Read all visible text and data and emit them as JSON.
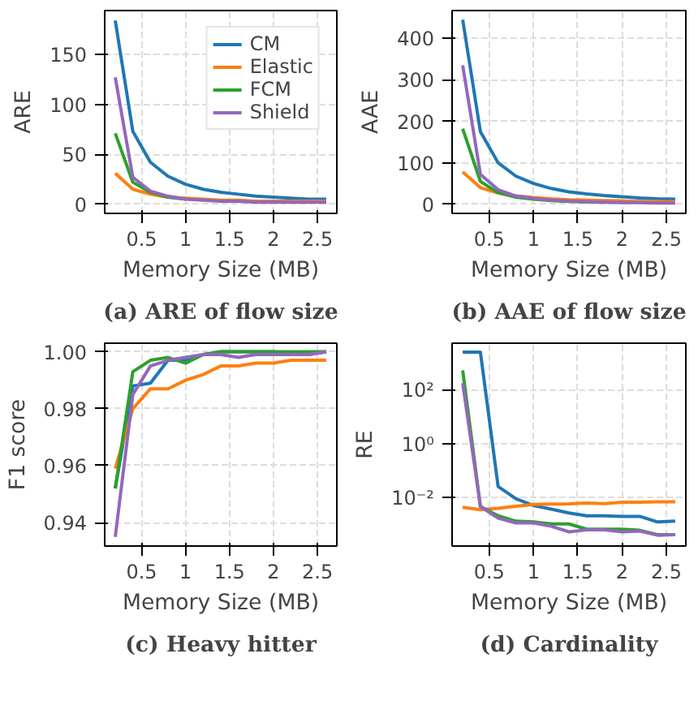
{
  "chart_data": [
    {
      "type": "line",
      "title": "(a) ARE of flow size",
      "xlabel": "Memory Size (MB)",
      "ylabel": "ARE",
      "x": [
        0.2,
        0.4,
        0.6,
        0.8,
        1.0,
        1.2,
        1.4,
        1.6,
        1.8,
        2.0,
        2.2,
        2.4,
        2.6
      ],
      "xlim": [
        0.08,
        2.72
      ],
      "xticks": [
        0.5,
        1.0,
        1.5,
        2.0,
        2.5
      ],
      "ylim": [
        -9.2,
        194
      ],
      "yticks": [
        0,
        50,
        100,
        150
      ],
      "grid": true,
      "legend": "top right",
      "series": [
        {
          "name": "CM",
          "color": "#1f77b4",
          "values": [
            184,
            73,
            42,
            28,
            20,
            15,
            12,
            10,
            8,
            7,
            6,
            5,
            5
          ]
        },
        {
          "name": "Elastic",
          "color": "#ff7f0e",
          "values": [
            31,
            15,
            10,
            7,
            6,
            5,
            4,
            4,
            3,
            3,
            3,
            3,
            3
          ]
        },
        {
          "name": "FCM",
          "color": "#2ca02c",
          "values": [
            71,
            22,
            12,
            7,
            5,
            null,
            null,
            null,
            null,
            null,
            null,
            null,
            null
          ]
        },
        {
          "name": "Shield",
          "color": "#9467bd",
          "values": [
            127,
            27,
            13,
            8,
            5,
            4,
            3,
            3,
            2,
            2,
            2,
            2,
            2
          ]
        }
      ]
    },
    {
      "type": "line",
      "title": "(b) AAE of flow size",
      "xlabel": "Memory Size (MB)",
      "ylabel": "AAE",
      "x": [
        0.2,
        0.4,
        0.6,
        0.8,
        1.0,
        1.2,
        1.4,
        1.6,
        1.8,
        2.0,
        2.2,
        2.4,
        2.6
      ],
      "xlim": [
        0.08,
        2.72
      ],
      "xticks": [
        0.5,
        1.0,
        1.5,
        2.0,
        2.5
      ],
      "ylim": [
        -22,
        467
      ],
      "yticks": [
        0,
        100,
        200,
        300,
        400
      ],
      "grid": true,
      "series": [
        {
          "color": "#1f77b4",
          "values": [
            445,
            175,
            100,
            68,
            50,
            38,
            30,
            25,
            21,
            18,
            15,
            13,
            12
          ]
        },
        {
          "color": "#ff7f0e",
          "values": [
            78,
            40,
            27,
            20,
            16,
            13,
            11,
            10,
            9,
            8,
            7,
            7,
            6
          ]
        },
        {
          "color": "#2ca02c",
          "values": [
            182,
            55,
            28,
            17,
            12,
            9,
            7,
            6,
            5,
            null,
            null,
            null,
            null
          ]
        },
        {
          "color": "#9467bd",
          "values": [
            335,
            72,
            35,
            20,
            14,
            10,
            8,
            6,
            5,
            4,
            4,
            3,
            3
          ]
        }
      ]
    },
    {
      "type": "line",
      "title": "(c) Heavy hitter",
      "xlabel": "Memory Size (MB)",
      "ylabel": "F1 score",
      "x": [
        0.2,
        0.4,
        0.6,
        0.8,
        1.0,
        1.2,
        1.4,
        1.6,
        1.8,
        2.0,
        2.2,
        2.4,
        2.6
      ],
      "xlim": [
        0.08,
        2.72
      ],
      "xticks": [
        0.5,
        1.0,
        1.5,
        2.0,
        2.5
      ],
      "ylim": [
        0.9318,
        1.003
      ],
      "yticks": [
        {
          "value": 0.94,
          "label": "0.94"
        },
        {
          "value": 0.96,
          "label": "0.96"
        },
        {
          "value": 0.98,
          "label": "0.98"
        },
        {
          "value": 1.0,
          "label": "1.00"
        }
      ],
      "grid": true,
      "series": [
        {
          "color": "#1f77b4",
          "values": [
            0.952,
            0.988,
            0.989,
            0.997,
            0.997,
            0.999,
            1.0,
            1.0,
            1.0,
            1.0,
            0.999,
            0.999,
            1.0
          ]
        },
        {
          "color": "#ff7f0e",
          "values": [
            0.959,
            0.98,
            0.987,
            0.987,
            0.99,
            0.992,
            0.995,
            0.995,
            0.996,
            0.996,
            0.997,
            0.997,
            0.997
          ]
        },
        {
          "color": "#2ca02c",
          "values": [
            0.952,
            0.993,
            0.997,
            0.998,
            0.996,
            0.999,
            1.0,
            1.0,
            1.0,
            1.0,
            1.0,
            1.0,
            1.0
          ]
        },
        {
          "color": "#9467bd",
          "values": [
            0.935,
            0.985,
            0.995,
            0.997,
            0.998,
            0.999,
            0.999,
            0.998,
            0.999,
            0.999,
            0.999,
            0.999,
            1.0
          ]
        }
      ]
    },
    {
      "type": "line",
      "title": "(d) Cardinality",
      "xlabel": "Memory Size (MB)",
      "ylabel": "RE",
      "x": [
        0.2,
        0.4,
        0.6,
        0.8,
        1.0,
        1.2,
        1.4,
        1.6,
        1.8,
        2.0,
        2.2,
        2.4,
        2.6
      ],
      "xlim": [
        0.08,
        2.72
      ],
      "xticks": [
        0.5,
        1.0,
        1.5,
        2.0,
        2.5
      ],
      "log": "y",
      "ylim": [
        0.000166,
        5750
      ],
      "yticks": [
        {
          "value": 0.01,
          "label": "10⁻²"
        },
        {
          "value": 1,
          "label": "10⁰"
        },
        {
          "value": 100,
          "label": "10²"
        }
      ],
      "grid": true,
      "series": [
        {
          "color": "#1f77b4",
          "values": [
            2700,
            2700,
            0.027,
            0.0095,
            0.0053,
            0.0039,
            0.0028,
            0.0022,
            0.0022,
            0.0021,
            0.0021,
            0.0013,
            0.0014
          ]
        },
        {
          "color": "#ff7f0e",
          "values": [
            0.0046,
            0.0037,
            0.0042,
            0.005,
            0.0058,
            0.006,
            0.0061,
            0.0066,
            0.0063,
            0.007,
            0.007,
            0.0073,
            0.0073
          ]
        },
        {
          "color": "#2ca02c",
          "values": [
            560,
            0.0049,
            0.0022,
            0.0014,
            0.0013,
            0.0011,
            0.0011,
            0.0007,
            0.0007,
            0.0007,
            0.00064,
            0.00044,
            0.00044
          ]
        },
        {
          "color": "#9467bd",
          "values": [
            190,
            0.0049,
            0.0018,
            0.0012,
            0.0012,
            0.0009,
            0.00056,
            0.00066,
            0.00066,
            0.00056,
            0.0006,
            0.00042,
            0.00044
          ]
        }
      ]
    }
  ]
}
